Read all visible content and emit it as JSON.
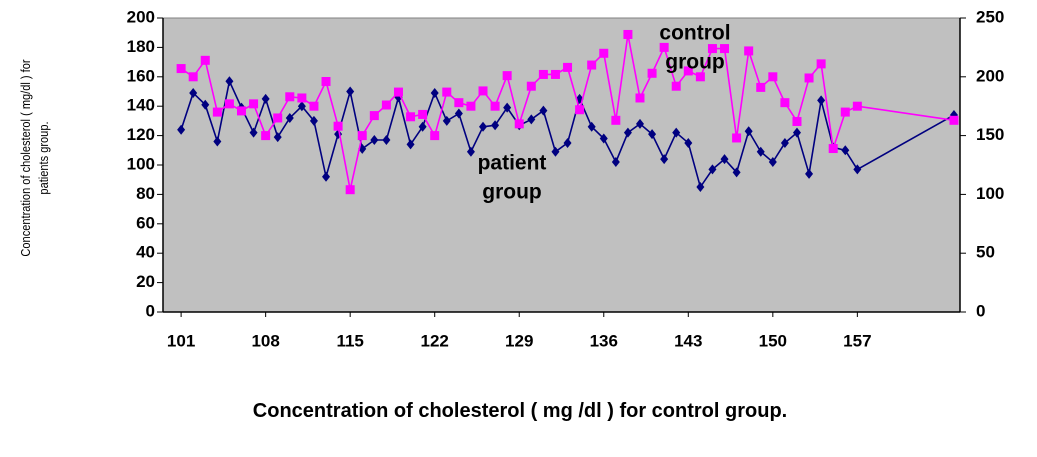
{
  "chart_data": {
    "type": "line",
    "x_label": "Concentration of cholesterol ( mg /dl ) for control group.",
    "y_label": "Concentration of cholesterol ( mg/dl ) for patients group.",
    "annotations": [
      [
        "control",
        "group"
      ],
      [
        "patient",
        "group"
      ]
    ],
    "x": [
      101,
      102,
      103,
      104,
      105,
      106,
      107,
      108,
      109,
      110,
      111,
      112,
      113,
      114,
      115,
      116,
      117,
      118,
      119,
      120,
      121,
      122,
      123,
      124,
      125,
      126,
      127,
      128,
      129,
      130,
      131,
      132,
      133,
      134,
      135,
      136,
      137,
      138,
      139,
      140,
      141,
      142,
      143,
      144,
      145,
      146,
      147,
      148,
      149,
      150,
      151,
      152,
      153,
      154,
      155,
      156,
      157,
      165
    ],
    "xlim": [
      99.5,
      165.5
    ],
    "xticks": [
      101,
      108,
      115,
      122,
      129,
      136,
      143,
      150,
      157
    ],
    "ylim": [
      0,
      200
    ],
    "yticks": [
      0,
      20,
      40,
      60,
      80,
      100,
      120,
      140,
      160,
      180,
      200
    ],
    "y2lim": [
      0,
      250
    ],
    "y2ticks": [
      0,
      50,
      100,
      150,
      200,
      250
    ],
    "grid": false,
    "background": "#c0c0c0",
    "series": [
      {
        "name": "patient group",
        "color": "#000080",
        "marker": "diamond",
        "values": [
          124,
          149,
          141,
          116,
          157,
          139,
          122,
          145,
          119,
          132,
          140,
          130,
          92,
          121,
          150,
          111,
          117,
          117,
          146,
          114,
          126,
          149,
          130,
          135,
          109,
          126,
          127,
          139,
          127,
          131,
          137,
          109,
          115,
          145,
          126,
          118,
          102,
          122,
          128,
          121,
          104,
          122,
          115,
          85,
          97,
          104,
          95,
          123,
          109,
          102,
          115,
          122,
          94,
          144,
          112,
          110,
          97,
          134
        ]
      },
      {
        "name": "control group",
        "color": "#ff00ff",
        "marker": "square",
        "axis": "y2",
        "values": [
          207,
          200,
          214,
          170,
          177,
          171,
          177,
          150,
          165,
          183,
          182,
          175,
          196,
          158,
          104,
          150,
          167,
          176,
          187,
          166,
          168,
          150,
          187,
          178,
          175,
          188,
          175,
          201,
          160,
          192,
          202,
          202,
          208,
          172,
          210,
          220,
          163,
          236,
          182,
          203,
          225,
          192,
          205,
          200,
          224,
          224,
          148,
          222,
          191,
          200,
          178,
          162,
          199,
          211,
          139,
          170,
          175,
          163
        ]
      }
    ]
  }
}
